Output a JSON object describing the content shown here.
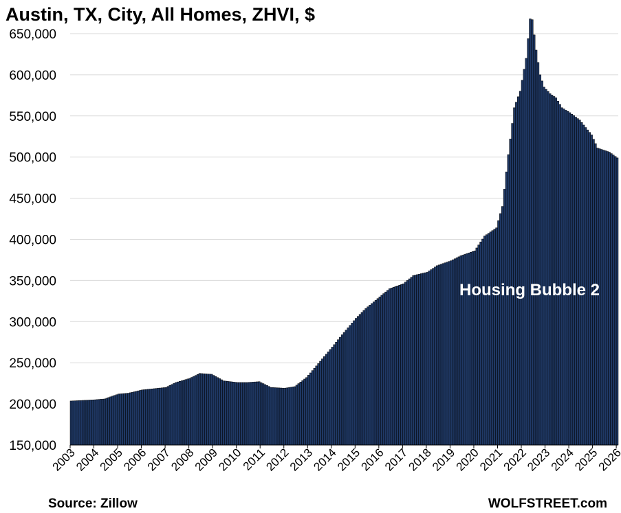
{
  "chart_data": {
    "type": "bar",
    "title": "Austin, TX, City, All Homes, ZHVI, $",
    "source": "Source: Zillow",
    "brand": "WOLFSTREET.com",
    "annotation": "Housing Bubble 2",
    "bar_color": "#1f3864",
    "bar_edge_color": "#000000",
    "annotation_color": "#ffffff",
    "grid": true,
    "ylim": [
      150000,
      670000
    ],
    "yticks": [
      "150,000",
      "200,000",
      "250,000",
      "300,000",
      "350,000",
      "400,000",
      "450,000",
      "500,000",
      "550,000",
      "600,000",
      "650,000"
    ],
    "ytick_values": [
      150000,
      200000,
      250000,
      300000,
      350000,
      400000,
      450000,
      500000,
      550000,
      600000,
      650000
    ],
    "xticks": [
      "2003",
      "2004",
      "2005",
      "2006",
      "2007",
      "2008",
      "2009",
      "2010",
      "2011",
      "2012",
      "2013",
      "2014",
      "2015",
      "2016",
      "2017",
      "2018",
      "2019",
      "2020",
      "2021",
      "2022",
      "2023",
      "2024",
      "2025",
      "2026"
    ],
    "xtick_years": [
      2003,
      2004,
      2005,
      2006,
      2007,
      2008,
      2009,
      2010,
      2011,
      2012,
      2013,
      2014,
      2015,
      2016,
      2017,
      2018,
      2019,
      2020,
      2021,
      2022,
      2023,
      2024,
      2025,
      2026
    ],
    "x_start": "2003-01",
    "x_end": "2026-01",
    "anchors": [
      [
        "2003-01",
        203500
      ],
      [
        "2004-01",
        205000
      ],
      [
        "2004-06",
        206000
      ],
      [
        "2005-01",
        212000
      ],
      [
        "2005-06",
        213000
      ],
      [
        "2006-01",
        217000
      ],
      [
        "2007-01",
        220000
      ],
      [
        "2007-06",
        226000
      ],
      [
        "2008-01",
        231000
      ],
      [
        "2008-06",
        237000
      ],
      [
        "2008-12",
        236000
      ],
      [
        "2009-06",
        228000
      ],
      [
        "2010-01",
        226000
      ],
      [
        "2010-06",
        226000
      ],
      [
        "2010-12",
        227000
      ],
      [
        "2011-06",
        220000
      ],
      [
        "2012-01",
        219000
      ],
      [
        "2012-06",
        221000
      ],
      [
        "2012-12",
        232000
      ],
      [
        "2013-06",
        249000
      ],
      [
        "2014-01",
        269000
      ],
      [
        "2014-06",
        284000
      ],
      [
        "2015-01",
        304000
      ],
      [
        "2015-06",
        316000
      ],
      [
        "2016-01",
        330000
      ],
      [
        "2016-06",
        340000
      ],
      [
        "2017-01",
        346000
      ],
      [
        "2017-06",
        356000
      ],
      [
        "2018-01",
        360000
      ],
      [
        "2018-06",
        368000
      ],
      [
        "2019-01",
        374000
      ],
      [
        "2019-06",
        380000
      ],
      [
        "2020-01",
        386000
      ],
      [
        "2020-06",
        404000
      ],
      [
        "2020-12",
        414000
      ],
      [
        "2021-03",
        440000
      ],
      [
        "2021-06",
        503000
      ],
      [
        "2021-09",
        560000
      ],
      [
        "2021-12",
        580000
      ],
      [
        "2022-03",
        620000
      ],
      [
        "2022-05",
        668000
      ],
      [
        "2022-06",
        667000
      ],
      [
        "2022-08",
        630000
      ],
      [
        "2022-10",
        600000
      ],
      [
        "2022-12",
        585000
      ],
      [
        "2023-03",
        577000
      ],
      [
        "2023-06",
        572000
      ],
      [
        "2023-09",
        560000
      ],
      [
        "2024-01",
        554000
      ],
      [
        "2024-06",
        545000
      ],
      [
        "2024-12",
        527000
      ],
      [
        "2025-03",
        511000
      ],
      [
        "2025-09",
        506000
      ],
      [
        "2026-01",
        499000
      ]
    ]
  }
}
